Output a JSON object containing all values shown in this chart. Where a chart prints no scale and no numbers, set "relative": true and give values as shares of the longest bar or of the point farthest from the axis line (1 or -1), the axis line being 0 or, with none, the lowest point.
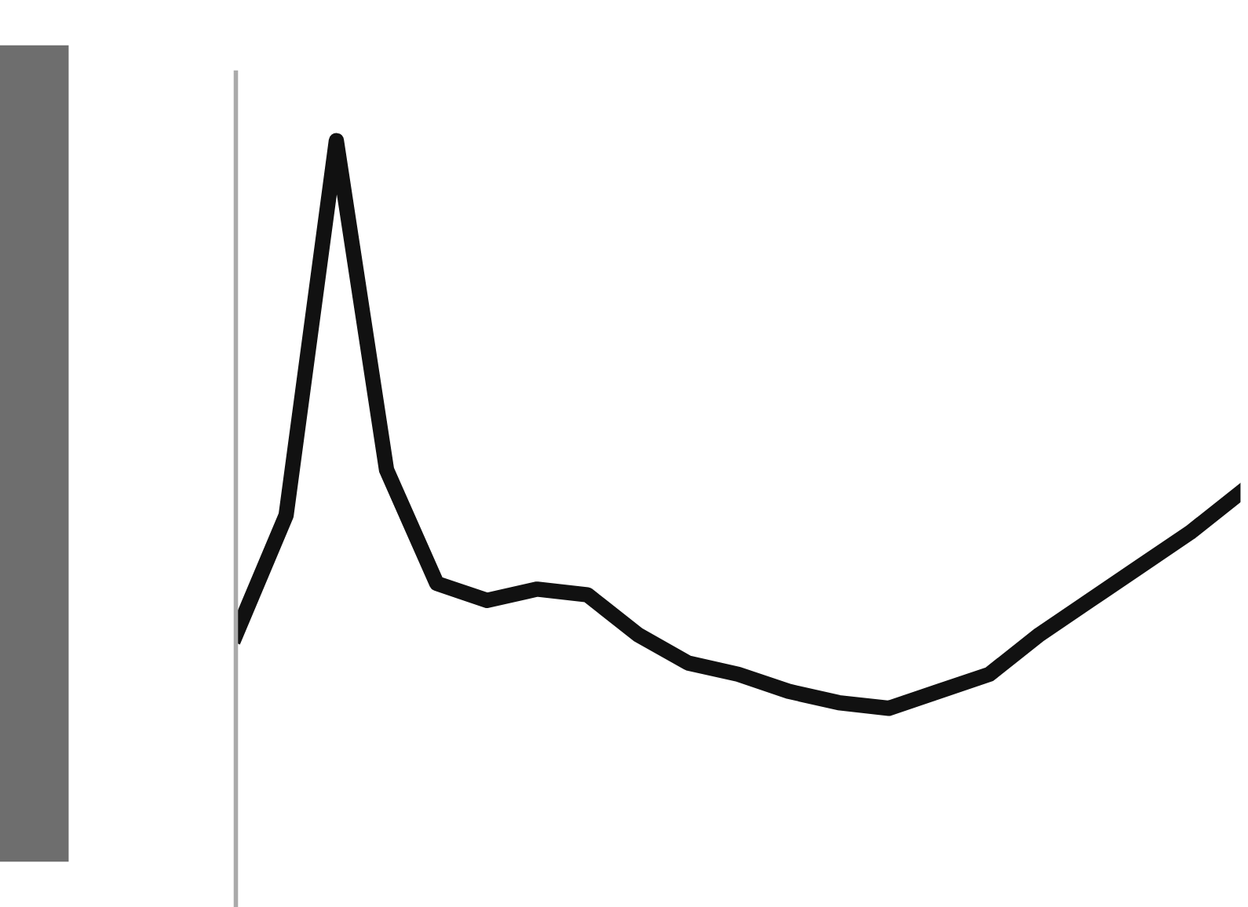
{
  "chart_data": {
    "type": "line",
    "relative": true,
    "legend": false,
    "marker": "none",
    "line_style": "solid",
    "categories": [
      null,
      null,
      null,
      null,
      null,
      null,
      null,
      null,
      null,
      null,
      null,
      null,
      null,
      null,
      null,
      null,
      null,
      null,
      null,
      null,
      null
    ],
    "series": [
      {
        "color": "#111111",
        "values": [
          0.13,
          0.34,
          1.0,
          0.42,
          0.22,
          0.19,
          0.21,
          0.2,
          0.13,
          0.08,
          0.06,
          0.03,
          0.01,
          0.0,
          0.03,
          0.06,
          0.13,
          0.19,
          0.25,
          0.31,
          0.38
        ]
      }
    ]
  }
}
